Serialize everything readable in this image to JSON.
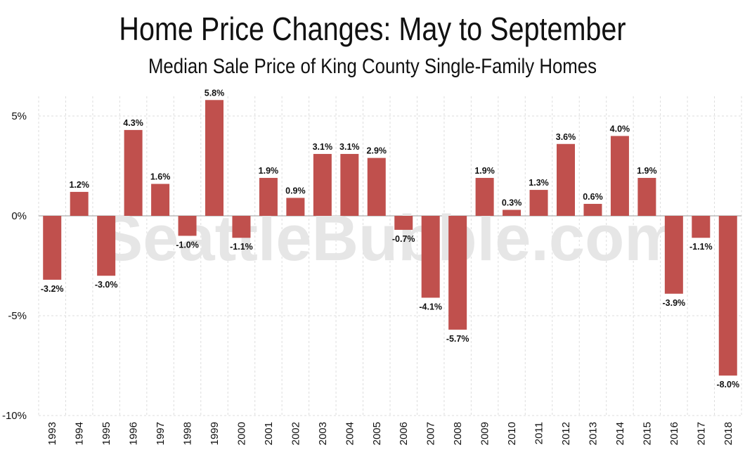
{
  "header": {
    "title": "Home Price Changes: May to September",
    "subtitle": "Median Sale Price of King County Single-Family Homes"
  },
  "watermark": "SeattleBubble.com",
  "colors": {
    "bar": "#c0504d",
    "grid": "#dddddd",
    "zero_line": "#bbbbbb",
    "watermark": "#e6e6e6"
  },
  "chart_data": {
    "type": "bar",
    "title": "Home Price Changes: May to September",
    "subtitle": "Median Sale Price of King County Single-Family Homes",
    "categories": [
      "1993",
      "1994",
      "1995",
      "1996",
      "1997",
      "1998",
      "1999",
      "2000",
      "2001",
      "2002",
      "2003",
      "2004",
      "2005",
      "2006",
      "2007",
      "2008",
      "2009",
      "2010",
      "2011",
      "2012",
      "2013",
      "2014",
      "2015",
      "2016",
      "2017",
      "2018"
    ],
    "values": [
      -3.2,
      1.2,
      -3.0,
      4.3,
      1.6,
      -1.0,
      5.8,
      -1.1,
      1.9,
      0.9,
      3.1,
      3.1,
      2.9,
      -0.7,
      -4.1,
      -5.7,
      1.9,
      0.3,
      1.3,
      3.6,
      0.6,
      4.0,
      1.9,
      -3.9,
      -1.1,
      -8.0
    ],
    "data_labels": [
      "-3.2%",
      "1.2%",
      "-3.0%",
      "4.3%",
      "1.6%",
      "-1.0%",
      "5.8%",
      "-1.1%",
      "1.9%",
      "0.9%",
      "3.1%",
      "3.1%",
      "2.9%",
      "-0.7%",
      "-4.1%",
      "-5.7%",
      "1.9%",
      "0.3%",
      "1.3%",
      "3.6%",
      "0.6%",
      "4.0%",
      "1.9%",
      "-3.9%",
      "-1.1%",
      "-8.0%"
    ],
    "yticks": [
      5,
      0,
      -5,
      -10
    ],
    "ytick_labels": [
      "5%",
      "0%",
      "-5%",
      "-10%"
    ],
    "ylim": [
      -10,
      6
    ],
    "xlabel": "",
    "ylabel": "",
    "grid": true,
    "legend": "none"
  }
}
